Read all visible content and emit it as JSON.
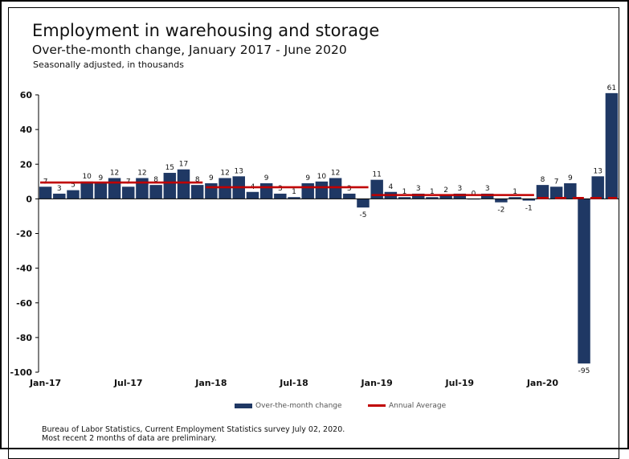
{
  "title": "Employment in warehousing and storage",
  "subtitle": "Over-the-month change, January 2017 - June 2020",
  "note": "Seasonally adjusted, in thousands",
  "source_lines": [
    "Bureau of Labor Statistics, Current Employment Statistics survey July 02, 2020.",
    "Most recent 2 months of data are preliminary."
  ],
  "colors": {
    "bar": "#1f3864",
    "average": "#c00000",
    "axis": "#000000",
    "grid": "#d9d9d9"
  },
  "chart_data": {
    "type": "bar",
    "title": "Employment in warehousing and storage",
    "subtitle": "Over-the-month change, January 2017 - June 2020",
    "ylabel": "Seasonally adjusted, in thousands",
    "ylim": [
      -100,
      60
    ],
    "yticks": [
      -100,
      -80,
      -60,
      -40,
      -20,
      0,
      20,
      40,
      60
    ],
    "x_tick_labels": [
      {
        "label": "Jan-17",
        "index": 0
      },
      {
        "label": "Jul-17",
        "index": 6
      },
      {
        "label": "Jan-18",
        "index": 12
      },
      {
        "label": "Jul-18",
        "index": 18
      },
      {
        "label": "Jan-19",
        "index": 24
      },
      {
        "label": "Jul-19",
        "index": 30
      },
      {
        "label": "Jan-20",
        "index": 36
      }
    ],
    "categories": [
      "Jan-17",
      "Feb-17",
      "Mar-17",
      "Apr-17",
      "May-17",
      "Jun-17",
      "Jul-17",
      "Aug-17",
      "Sep-17",
      "Oct-17",
      "Nov-17",
      "Dec-17",
      "Jan-18",
      "Feb-18",
      "Mar-18",
      "Apr-18",
      "May-18",
      "Jun-18",
      "Jul-18",
      "Aug-18",
      "Sep-18",
      "Oct-18",
      "Nov-18",
      "Dec-18",
      "Jan-19",
      "Feb-19",
      "Mar-19",
      "Apr-19",
      "May-19",
      "Jun-19",
      "Jul-19",
      "Aug-19",
      "Sep-19",
      "Oct-19",
      "Nov-19",
      "Dec-19",
      "Jan-20",
      "Feb-20",
      "Mar-20",
      "Apr-20",
      "May-20",
      "Jun-20"
    ],
    "series": [
      {
        "name": "Over-the-month change",
        "values": [
          7,
          3,
          5,
          10,
          9,
          12,
          7,
          12,
          8,
          15,
          17,
          8,
          9,
          12,
          13,
          4,
          9,
          3,
          1,
          9,
          10,
          12,
          3,
          -5,
          11,
          4,
          1,
          3,
          1,
          2,
          3,
          0,
          3,
          -2,
          1,
          -1,
          8,
          7,
          9,
          -95,
          13,
          61
        ],
        "labels": [
          "7",
          "3",
          "5",
          "10",
          "9",
          "12",
          "7",
          "12",
          "8",
          "15",
          "17",
          "8",
          "9",
          "12",
          "13",
          "4",
          "9",
          "3",
          "1",
          "9",
          "10",
          "12",
          "3",
          "-5",
          "11",
          "4",
          "1",
          "3",
          "1",
          "2",
          "3",
          "0",
          "3",
          "-2",
          "1",
          "-1",
          "8",
          "7",
          "9",
          "-95",
          "13",
          "61"
        ]
      },
      {
        "name": "Annual Average",
        "type": "line",
        "segments": [
          {
            "start": 0,
            "end": 11,
            "value": 9.4
          },
          {
            "start": 12,
            "end": 23,
            "value": 6.7
          },
          {
            "start": 24,
            "end": 35,
            "value": 2.2
          },
          {
            "start": 36,
            "end": 41,
            "value": 0.5
          }
        ]
      }
    ],
    "legend": {
      "position": "bottom",
      "entries": [
        "Over-the-month change",
        "Annual Average"
      ]
    },
    "grid": false
  }
}
